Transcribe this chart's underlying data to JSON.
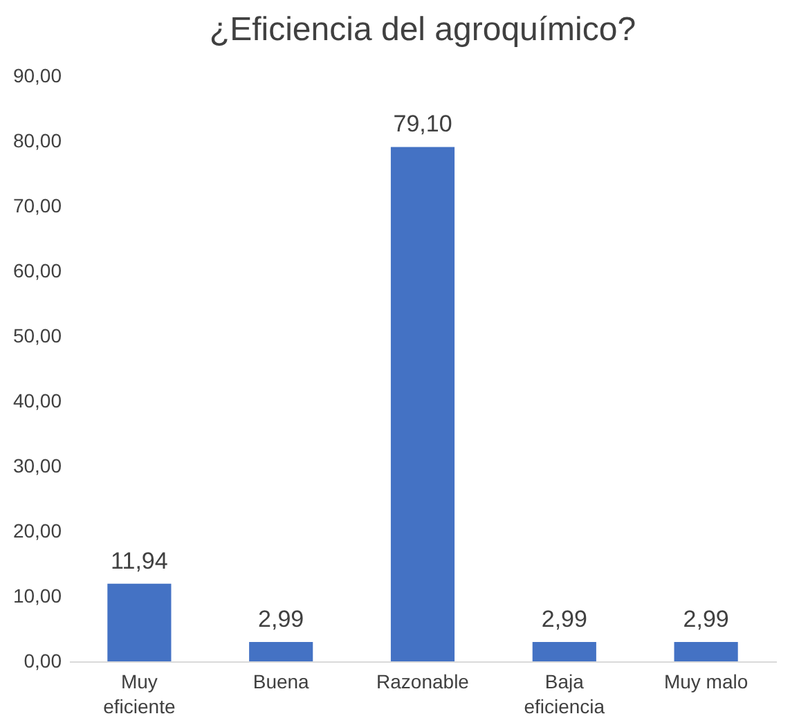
{
  "chart_data": {
    "type": "bar",
    "title": "¿Eficiencia del agroquímico?",
    "categories": [
      "Muy\neficiente",
      "Buena",
      "Razonable",
      "Baja\neficiencia",
      "Muy malo"
    ],
    "values": [
      11.94,
      2.99,
      79.1,
      2.99,
      2.99
    ],
    "value_labels": [
      "11,94",
      "2,99",
      "79,10",
      "2,99",
      "2,99"
    ],
    "color": "#4472c4",
    "ylim": [
      0,
      90
    ],
    "yticks": [
      {
        "value": 0,
        "label": "0,00"
      },
      {
        "value": 10,
        "label": "10,00"
      },
      {
        "value": 20,
        "label": "20,00"
      },
      {
        "value": 30,
        "label": "30,00"
      },
      {
        "value": 40,
        "label": "40,00"
      },
      {
        "value": 50,
        "label": "50,00"
      },
      {
        "value": 60,
        "label": "60,00"
      },
      {
        "value": 70,
        "label": "70,00"
      },
      {
        "value": 80,
        "label": "80,00"
      },
      {
        "value": 90,
        "label": "90,00"
      }
    ],
    "grid": false
  }
}
